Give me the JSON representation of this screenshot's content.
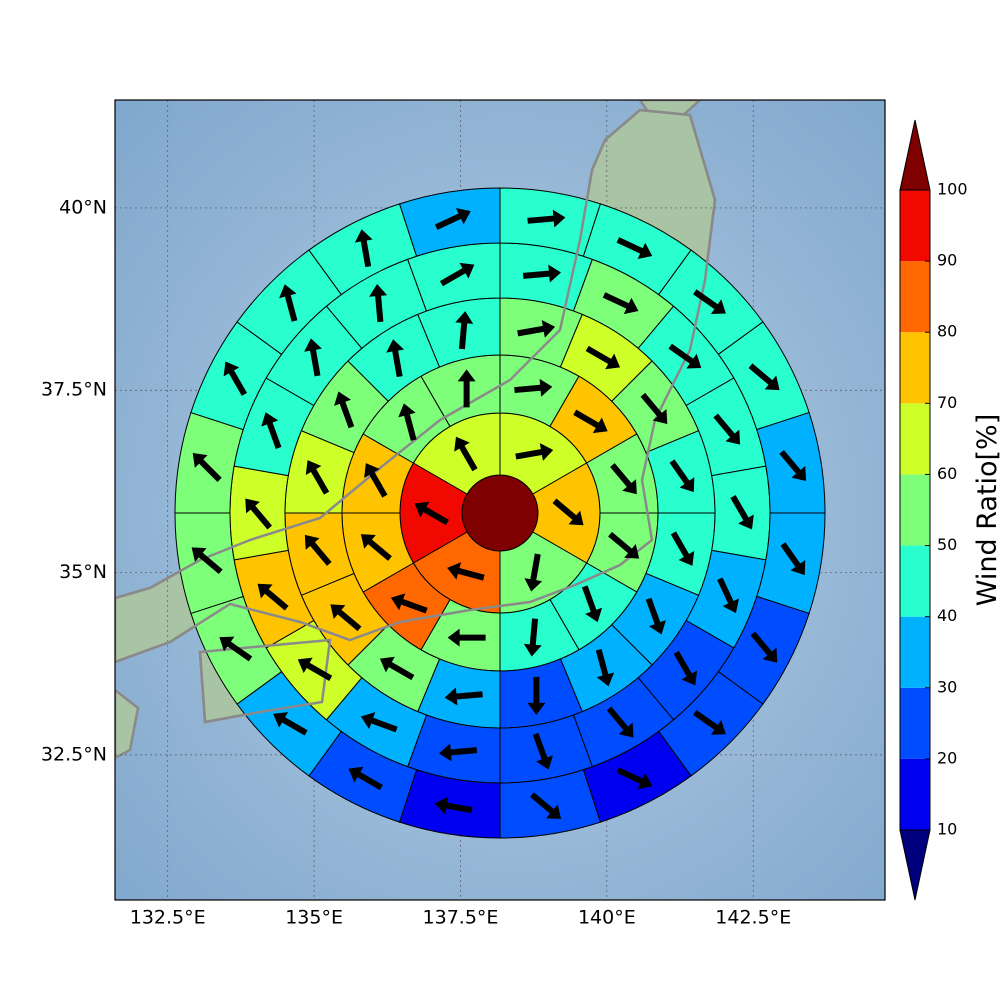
{
  "chart_data": {
    "type": "polar-sector-map",
    "xlim": [
      131.6,
      144.75
    ],
    "ylim": [
      30.51,
      41.48
    ],
    "xticks": [
      {
        "value": 132.5,
        "label": "132.5°E"
      },
      {
        "value": 135,
        "label": "135°E"
      },
      {
        "value": 137.5,
        "label": "137.5°E"
      },
      {
        "value": 140,
        "label": "140°E"
      },
      {
        "value": 142.5,
        "label": "142.5°E"
      }
    ],
    "yticks": [
      {
        "value": 32.5,
        "label": "32.5°N"
      },
      {
        "value": 35,
        "label": "35°N"
      },
      {
        "value": 37.5,
        "label": "37.5°N"
      },
      {
        "value": 40,
        "label": "40°N"
      }
    ],
    "grid": true,
    "center_value": 105,
    "rings": [
      {
        "values": [
          65,
          75,
          55,
          85,
          95,
          65
        ],
        "directions": [
          80,
          130,
          190,
          285,
          300,
          330
        ]
      },
      {
        "values": [
          55,
          75,
          55,
          55,
          45,
          45,
          55,
          85,
          75,
          75,
          55,
          55
        ],
        "directions": [
          85,
          120,
          140,
          130,
          160,
          185,
          270,
          290,
          310,
          330,
          345,
          0
        ]
      },
      {
        "values": [
          55,
          65,
          55,
          45,
          45,
          35,
          35,
          25,
          35,
          55,
          75,
          75,
          65,
          55,
          45,
          45
        ],
        "directions": [
          80,
          120,
          140,
          145,
          150,
          160,
          165,
          180,
          265,
          300,
          310,
          320,
          330,
          340,
          350,
          5
        ]
      },
      {
        "values": [
          45,
          55,
          45,
          45,
          45,
          35,
          25,
          25,
          25,
          25,
          35,
          65,
          75,
          65,
          45,
          45,
          45,
          45
        ],
        "directions": [
          85,
          115,
          125,
          140,
          150,
          155,
          150,
          140,
          160,
          265,
          290,
          300,
          310,
          320,
          340,
          350,
          355,
          60
        ]
      },
      {
        "values": [
          45,
          45,
          45,
          45,
          35,
          35,
          25,
          25,
          15,
          25,
          15,
          25,
          35,
          55,
          55,
          55,
          45,
          45,
          45,
          35
        ],
        "directions": [
          85,
          115,
          125,
          130,
          140,
          145,
          140,
          125,
          115,
          130,
          280,
          300,
          300,
          305,
          310,
          315,
          330,
          345,
          350,
          65
        ]
      }
    ],
    "colorbar": {
      "label": "Wind Ratio[%]",
      "ticks": [
        10,
        20,
        30,
        40,
        50,
        60,
        70,
        80,
        90,
        100
      ],
      "colors": [
        "#00007f",
        "#0000f1",
        "#004dff",
        "#00b1ff",
        "#29ffce",
        "#7dff7a",
        "#ceff29",
        "#ffc400",
        "#ff6800",
        "#f10800",
        "#7f0000"
      ]
    }
  }
}
